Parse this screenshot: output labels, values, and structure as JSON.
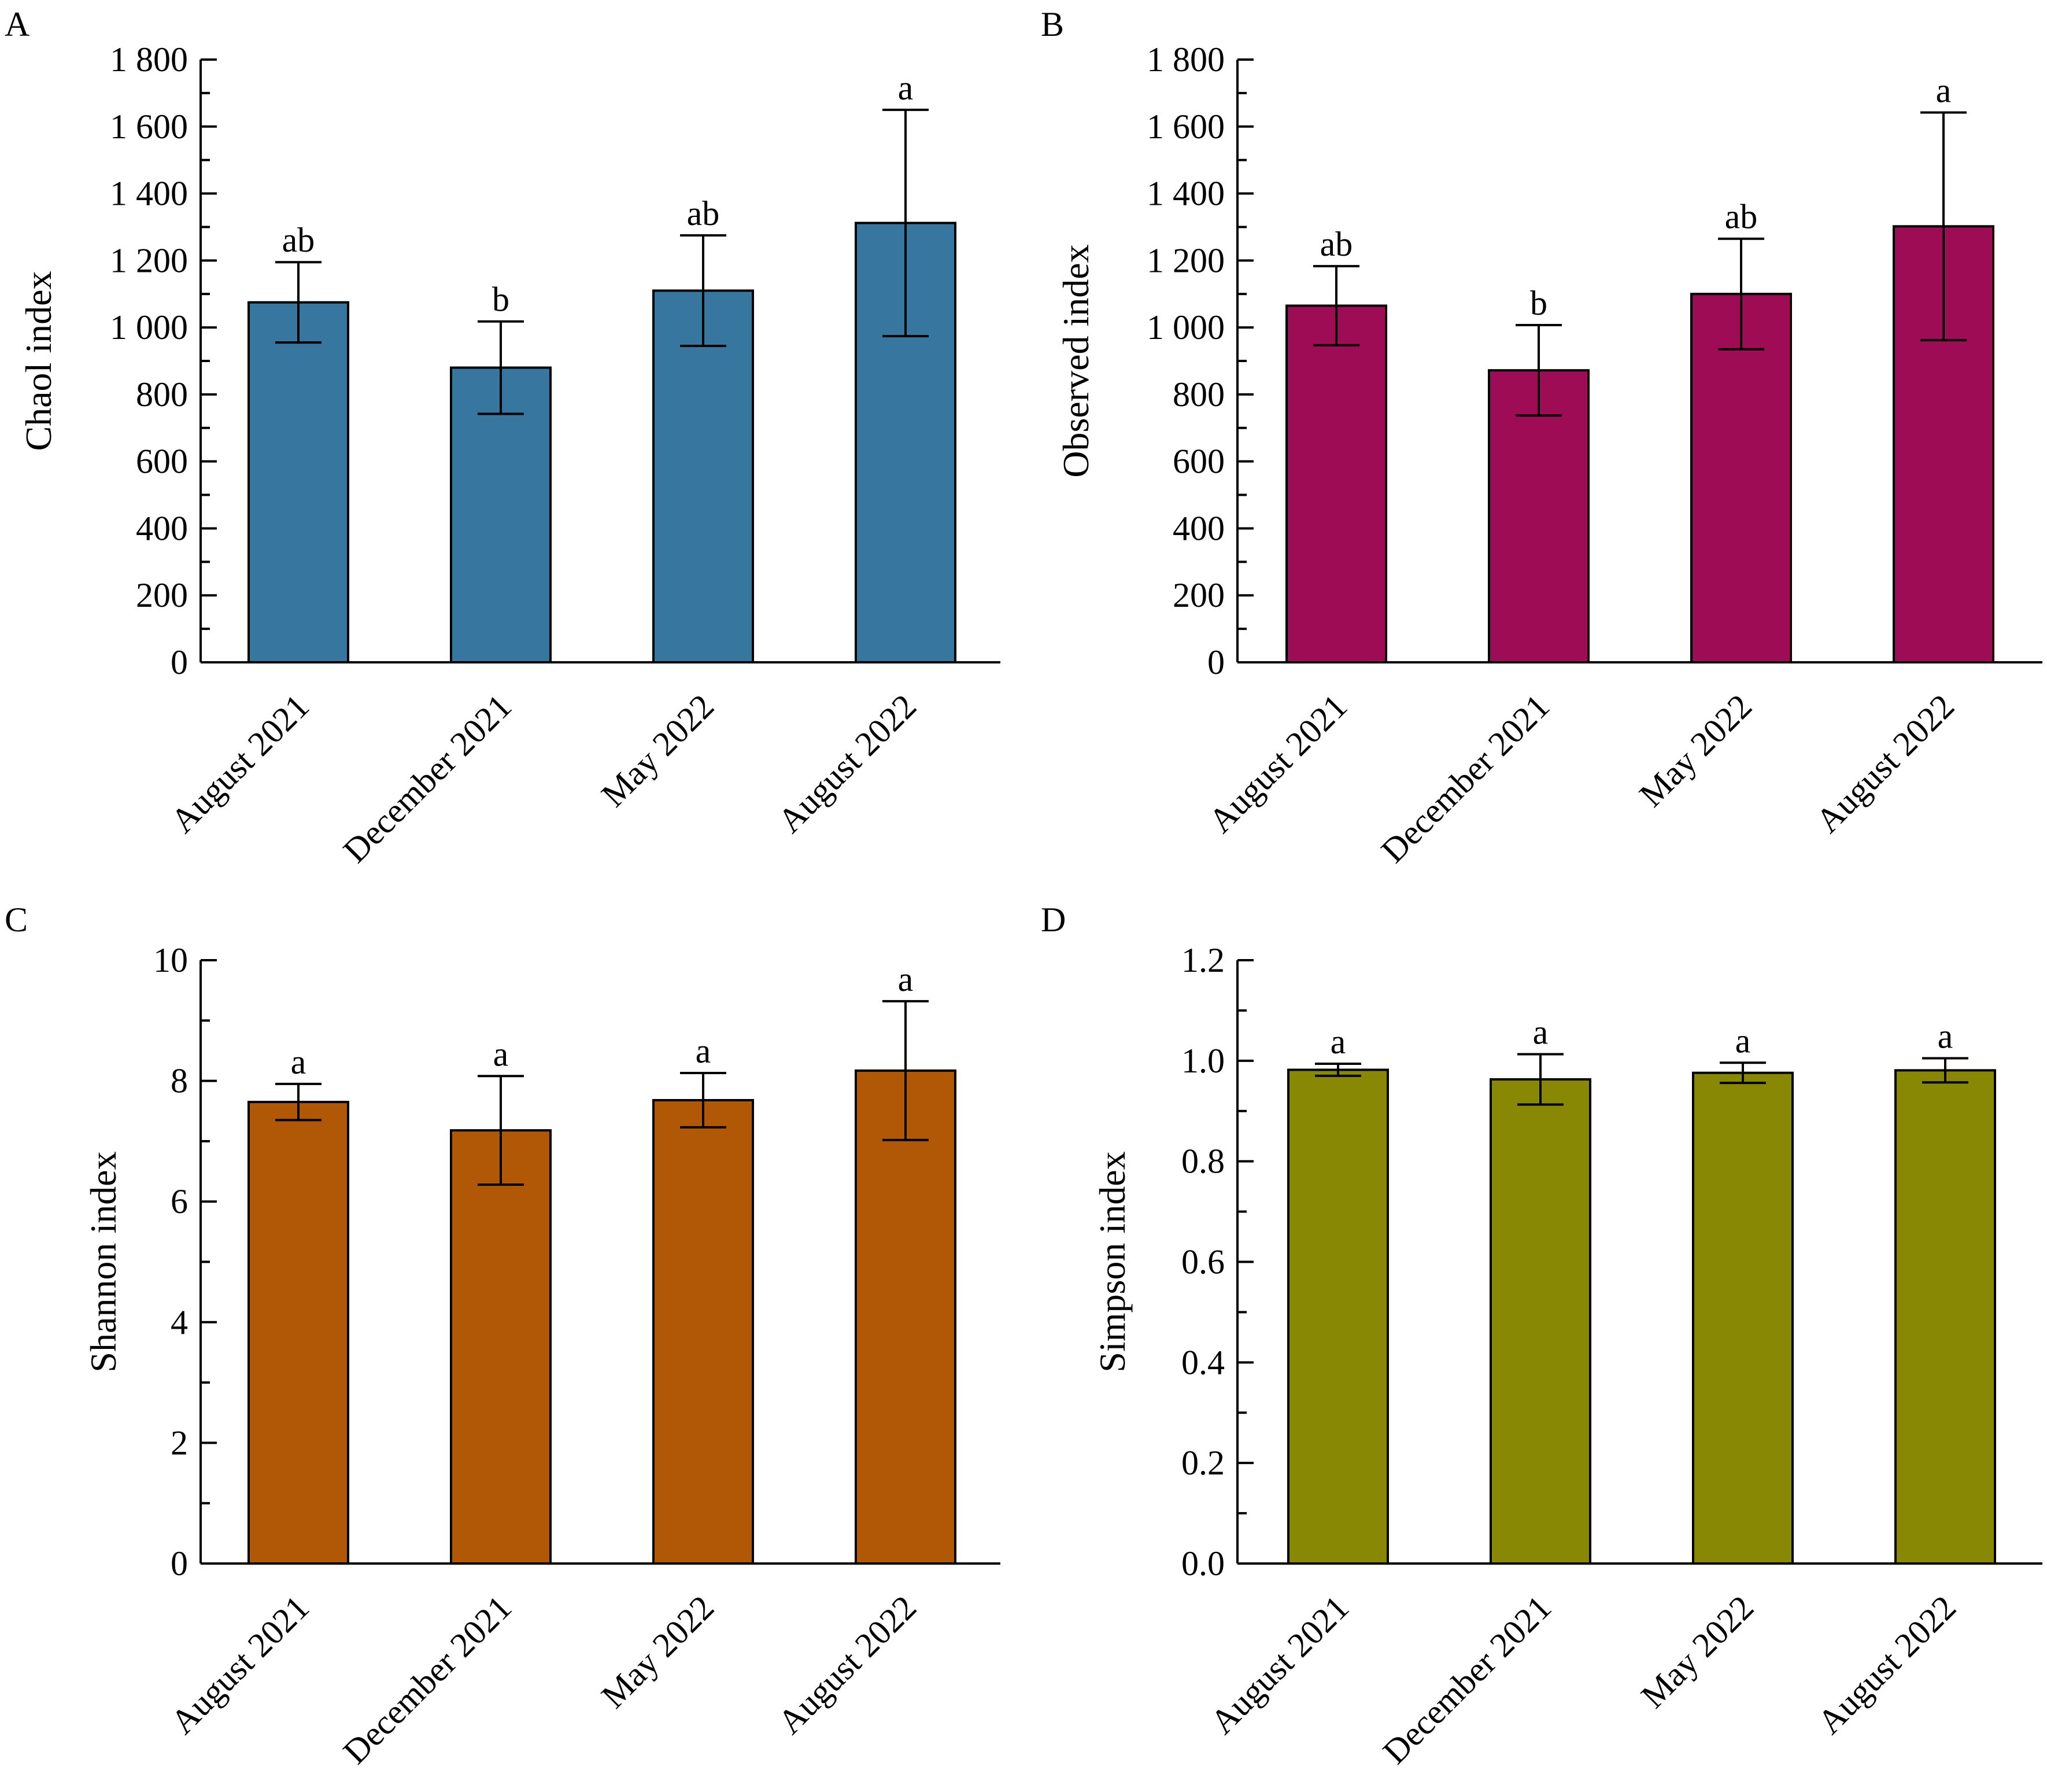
{
  "chart_data": [
    {
      "panel": "A",
      "type": "bar",
      "categories": [
        "August 2021",
        "December 2021",
        "May 2022",
        "August 2022"
      ],
      "values": [
        1075,
        880,
        1110,
        1312
      ],
      "errors": [
        120,
        138,
        165,
        338
      ],
      "significance": [
        "ab",
        "b",
        "ab",
        "a"
      ],
      "ylabel": "Chaol index",
      "ylim": [
        0,
        1800
      ],
      "yticks": [
        0,
        200,
        400,
        600,
        800,
        1000,
        1200,
        1400,
        1600,
        1800
      ],
      "ytick_labels": [
        "0",
        "200",
        "400",
        "600",
        "800",
        "1 000",
        "1 200",
        "1 400",
        "1 600",
        "1 800"
      ],
      "color": "#36769f"
    },
    {
      "panel": "B",
      "type": "bar",
      "categories": [
        "August 2021",
        "December 2021",
        "May 2022",
        "August 2022"
      ],
      "values": [
        1065,
        872,
        1100,
        1302
      ],
      "errors": [
        118,
        135,
        165,
        340
      ],
      "significance": [
        "ab",
        "b",
        "ab",
        "a"
      ],
      "ylabel": "Observed index",
      "ylim": [
        0,
        1800
      ],
      "yticks": [
        0,
        200,
        400,
        600,
        800,
        1000,
        1200,
        1400,
        1600,
        1800
      ],
      "ytick_labels": [
        "0",
        "200",
        "400",
        "600",
        "800",
        "1 000",
        "1 200",
        "1 400",
        "1 600",
        "1 800"
      ],
      "color": "#9e0c55"
    },
    {
      "panel": "C",
      "type": "bar",
      "categories": [
        "August 2021",
        "December 2021",
        "May 2022",
        "August 2022"
      ],
      "values": [
        7.65,
        7.18,
        7.68,
        8.17
      ],
      "errors": [
        0.3,
        0.9,
        0.45,
        1.15
      ],
      "significance": [
        "a",
        "a",
        "a",
        "a"
      ],
      "ylabel": "Shannon index",
      "ylim": [
        0,
        10
      ],
      "yticks": [
        0,
        2,
        4,
        6,
        8,
        10
      ],
      "ytick_labels": [
        "0",
        "2",
        "4",
        "6",
        "8",
        "10"
      ],
      "color": "#b05806"
    },
    {
      "panel": "D",
      "type": "bar",
      "categories": [
        "August 2021",
        "December 2021",
        "May 2022",
        "August 2022"
      ],
      "values": [
        0.982,
        0.963,
        0.976,
        0.981
      ],
      "errors": [
        0.012,
        0.05,
        0.02,
        0.024
      ],
      "significance": [
        "a",
        "a",
        "a",
        "a"
      ],
      "ylabel": "Simpson index",
      "ylim": [
        0,
        1.2
      ],
      "yticks": [
        0,
        0.2,
        0.4,
        0.6,
        0.8,
        1.0,
        1.2
      ],
      "ytick_labels": [
        "0.0",
        "0.2",
        "0.4",
        "0.6",
        "0.8",
        "1.0",
        "1.2"
      ],
      "color": "#888804"
    }
  ]
}
